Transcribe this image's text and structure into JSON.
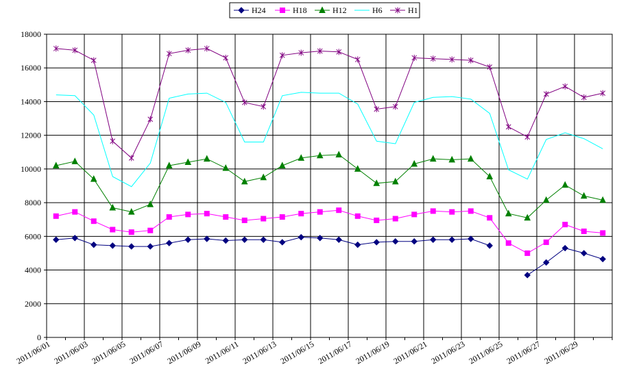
{
  "chart_data": {
    "type": "line",
    "title": "",
    "xlabel": "",
    "ylabel": "",
    "ylim": [
      0,
      18000
    ],
    "y_ticks": [
      "0",
      "2000",
      "4000",
      "6000",
      "8000",
      "10000",
      "12000",
      "14000",
      "16000",
      "18000"
    ],
    "grid": true,
    "legend_position": "top",
    "x": [
      "2011/06/01",
      "2011/06/02",
      "2011/06/03",
      "2011/06/04",
      "2011/06/05",
      "2011/06/06",
      "2011/06/07",
      "2011/06/08",
      "2011/06/09",
      "2011/06/10",
      "2011/06/11",
      "2011/06/12",
      "2011/06/13",
      "2011/06/14",
      "2011/06/15",
      "2011/06/16",
      "2011/06/17",
      "2011/06/18",
      "2011/06/19",
      "2011/06/20",
      "2011/06/21",
      "2011/06/22",
      "2011/06/23",
      "2011/06/24",
      "2011/06/25",
      "2011/06/26",
      "2011/06/27",
      "2011/06/28",
      "2011/06/29",
      "2011/06/30"
    ],
    "x_tick_labels": [
      "2011/06/01",
      "",
      "2011/06/03",
      "",
      "2011/06/05",
      "",
      "2011/06/07",
      "",
      "2011/06/09",
      "",
      "2011/06/11",
      "",
      "2011/06/13",
      "",
      "2011/06/15",
      "",
      "2011/06/17",
      "",
      "2011/06/19",
      "",
      "2011/06/21",
      "",
      "2011/06/23",
      "",
      "2011/06/25",
      "",
      "2011/06/27",
      "",
      "2011/06/29",
      ""
    ],
    "series": [
      {
        "name": "H24",
        "color": "#000080",
        "marker": "diamond",
        "values": [
          5800,
          5900,
          5500,
          5450,
          5400,
          5400,
          5600,
          5800,
          5850,
          5750,
          5800,
          5800,
          5650,
          5950,
          5900,
          5800,
          5500,
          5650,
          5700,
          5700,
          5800,
          5800,
          5850,
          5450,
          null,
          3700,
          4450,
          5300,
          5000,
          4650
        ]
      },
      {
        "name": "H18",
        "color": "#ff00ff",
        "marker": "square",
        "values": [
          7200,
          7450,
          6900,
          6400,
          6250,
          6350,
          7150,
          7300,
          7350,
          7150,
          6950,
          7050,
          7150,
          7350,
          7450,
          7550,
          7200,
          6950,
          7050,
          7300,
          7500,
          7450,
          7500,
          7100,
          5600,
          5000,
          5650,
          6700,
          6300,
          6200
        ]
      },
      {
        "name": "H12",
        "color": "#008000",
        "marker": "triangle",
        "values": [
          10200,
          10450,
          9400,
          7700,
          7450,
          7900,
          10200,
          10400,
          10600,
          10050,
          9250,
          9500,
          10200,
          10650,
          10800,
          10850,
          10000,
          9150,
          9250,
          10300,
          10600,
          10550,
          10600,
          9550,
          7350,
          7100,
          8150,
          9050,
          8400,
          8150
        ]
      },
      {
        "name": "H6",
        "color": "#00ffff",
        "marker": "none",
        "values": [
          14400,
          14350,
          13200,
          9550,
          8950,
          10350,
          14200,
          14450,
          14500,
          13950,
          11600,
          11600,
          14350,
          14550,
          14500,
          14500,
          13850,
          11650,
          11500,
          13950,
          14250,
          14300,
          14150,
          13300,
          9950,
          9400,
          11750,
          12150,
          11800,
          11200
        ]
      },
      {
        "name": "H1",
        "color": "#800080",
        "marker": "star",
        "values": [
          17150,
          17050,
          16450,
          11650,
          10650,
          12950,
          16850,
          17050,
          17150,
          16600,
          13950,
          13700,
          16750,
          16900,
          17000,
          16950,
          16500,
          13550,
          13700,
          16600,
          16550,
          16500,
          16450,
          16050,
          12500,
          11900,
          14450,
          14900,
          14250,
          14500
        ]
      }
    ]
  }
}
